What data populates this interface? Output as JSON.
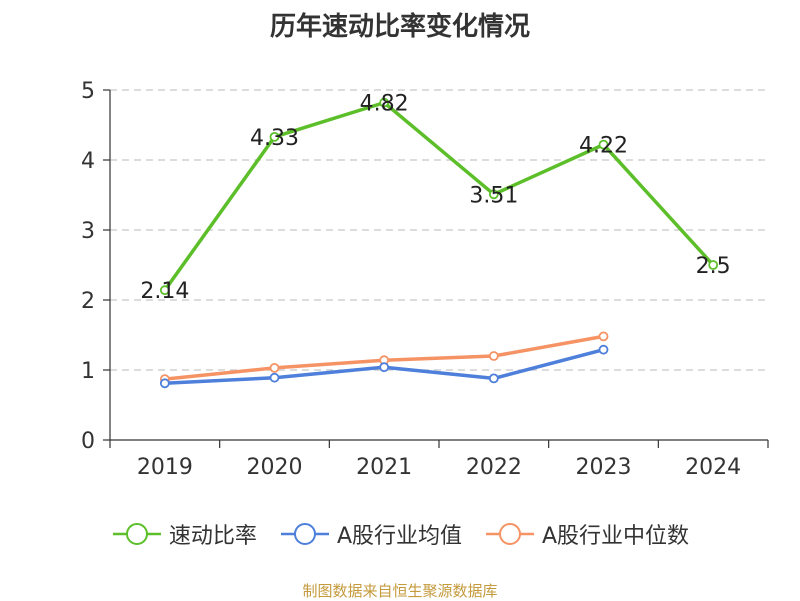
{
  "source_note": "制图数据来自恒生聚源数据库",
  "chart_data": {
    "type": "line",
    "title": "历年速动比率变化情况",
    "categories": [
      "2019",
      "2020",
      "2021",
      "2022",
      "2023",
      "2024"
    ],
    "ylim": [
      0,
      5
    ],
    "yticks": [
      0,
      1,
      2,
      3,
      4,
      5
    ],
    "grid": true,
    "legend_position": "bottom",
    "series": [
      {
        "name": "速动比率",
        "color": "#5cbf2a",
        "values": [
          2.14,
          4.33,
          4.82,
          3.51,
          4.22,
          2.5
        ],
        "labels": [
          "2.14",
          "4.33",
          "4.82",
          "3.51",
          "4.22",
          "2.5"
        ],
        "show_labels": true
      },
      {
        "name": "A股行业均值",
        "color": "#4e7fdb",
        "values": [
          0.81,
          0.89,
          1.04,
          0.88,
          1.29,
          null
        ],
        "show_labels": false
      },
      {
        "name": "A股行业中位数",
        "color": "#f59365",
        "values": [
          0.87,
          1.03,
          1.14,
          1.2,
          1.48,
          null
        ],
        "show_labels": false
      }
    ]
  }
}
